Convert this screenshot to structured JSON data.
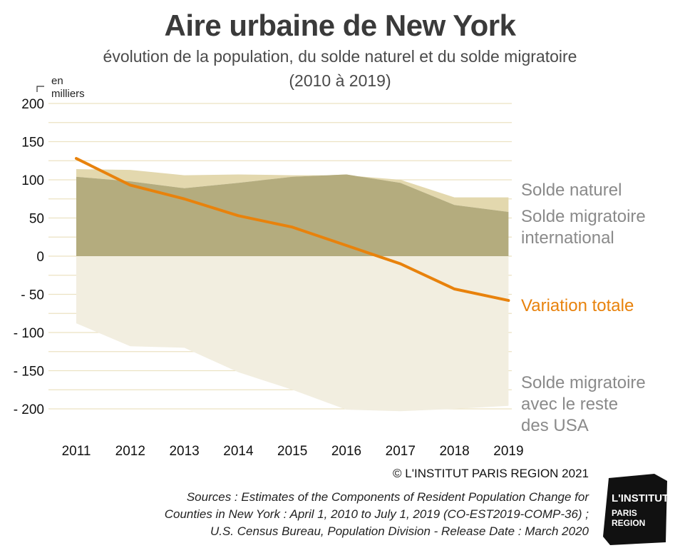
{
  "title": "Aire urbaine de New York",
  "subtitle_line1": "évolution de la population, du solde naturel et du solde migratoire",
  "subtitle_line2": "(2010 à 2019)",
  "unit_label_line1": "en",
  "unit_label_line2": "milliers",
  "copyright": "© L'INSTITUT PARIS REGION 2021",
  "sources": [
    "Sources : Estimates of the Components of Resident Population Change for",
    "Counties in New York : April 1, 2010 to July 1, 2019 (CO-EST2019-COMP-36) ;",
    "U.S. Census Bureau, Population Division - Release Date : March 2020"
  ],
  "logo": {
    "line1": "L'INSTITUT",
    "line2": "PARIS",
    "line3": "REGION"
  },
  "colors": {
    "natural": "#e3d8ae",
    "international": "#b4ac7e",
    "domestic": "#f2eee0",
    "total": "#e8820c",
    "legend_gray": "#8a8a8a",
    "grid": "#ece2c2"
  },
  "chart_data": {
    "type": "area",
    "x": [
      "2011",
      "2012",
      "2013",
      "2014",
      "2015",
      "2016",
      "2017",
      "2018",
      "2019"
    ],
    "ylim": [
      -200,
      200
    ],
    "yticks": [
      {
        "value": 200,
        "label": "200"
      },
      {
        "value": 150,
        "label": "150"
      },
      {
        "value": 100,
        "label": "100"
      },
      {
        "value": 50,
        "label": "50"
      },
      {
        "value": 0,
        "label": "0"
      },
      {
        "value": -50,
        "label": "- 50"
      },
      {
        "value": -100,
        "label": "- 100"
      },
      {
        "value": -150,
        "label": "- 150"
      },
      {
        "value": -200,
        "label": "- 200"
      }
    ],
    "series": [
      {
        "key": "natural",
        "name": "Solde naturel",
        "values": [
          10,
          15,
          17,
          11,
          2,
          -1,
          4,
          10,
          19
        ]
      },
      {
        "key": "international",
        "name": "Solde migratoire international",
        "values": [
          104,
          98,
          89,
          96,
          104,
          107,
          96,
          67,
          58
        ]
      },
      {
        "key": "domestic",
        "name": "Solde migratoire avec le reste des USA",
        "values": [
          -88,
          -118,
          -120,
          -152,
          -175,
          -201,
          -203,
          -200,
          -196
        ]
      },
      {
        "key": "total",
        "name": "Variation totale",
        "values": [
          128,
          93,
          75,
          53,
          38,
          14,
          -10,
          -43,
          -58
        ]
      }
    ],
    "legend": [
      {
        "key": "natural",
        "lines": [
          "Solde naturel"
        ]
      },
      {
        "key": "international",
        "lines": [
          "Solde migratoire",
          "international"
        ]
      },
      {
        "key": "total",
        "lines": [
          "Variation totale"
        ]
      },
      {
        "key": "domestic",
        "lines": [
          "Solde migratoire",
          "avec le reste",
          "des USA"
        ]
      }
    ],
    "legend_placement": "right",
    "grid": true
  }
}
